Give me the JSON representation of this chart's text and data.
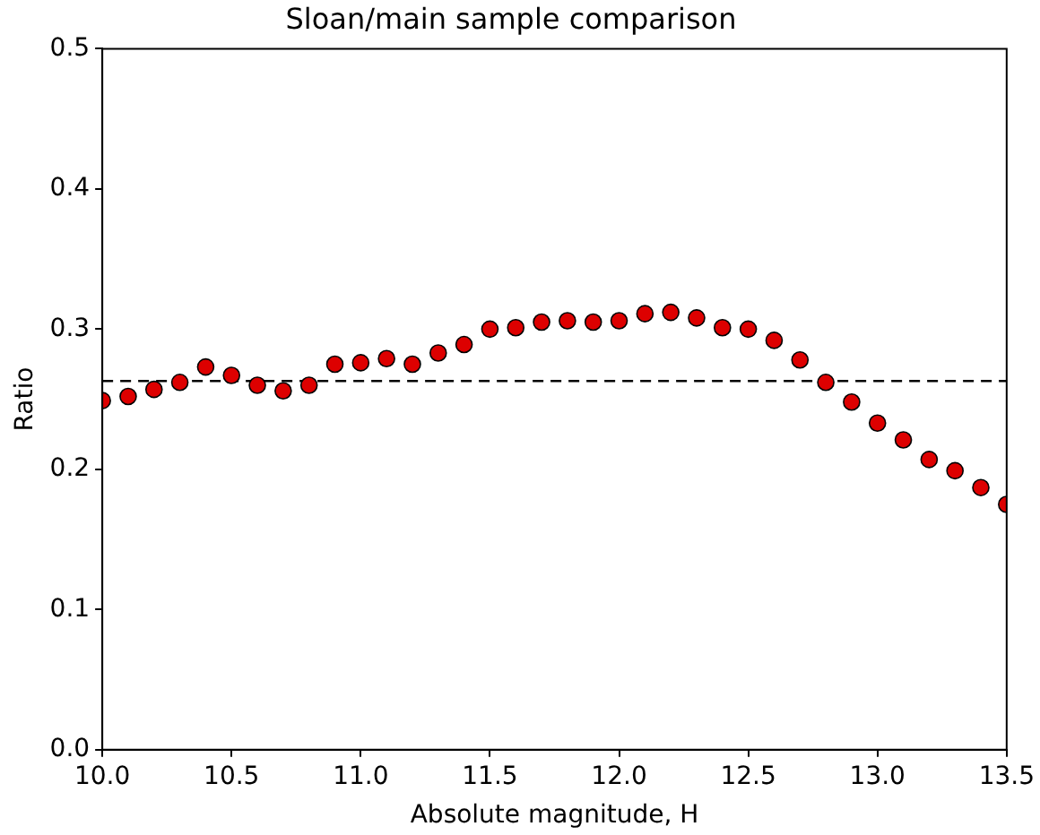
{
  "chart_data": {
    "type": "scatter",
    "title": "Sloan/main sample comparison",
    "xlabel": "Absolute magnitude, H",
    "ylabel": "Ratio",
    "x": [
      10.0,
      10.1,
      10.2,
      10.3,
      10.4,
      10.5,
      10.6,
      10.7,
      10.8,
      10.9,
      11.0,
      11.1,
      11.2,
      11.3,
      11.4,
      11.5,
      11.6,
      11.7,
      11.8,
      11.9,
      12.0,
      12.1,
      12.2,
      12.3,
      12.4,
      12.5,
      12.6,
      12.7,
      12.8,
      12.9,
      13.0,
      13.1,
      13.2,
      13.3,
      13.4,
      13.5
    ],
    "series": [
      {
        "color": "#dd0000",
        "values": [
          0.249,
          0.252,
          0.257,
          0.262,
          0.273,
          0.267,
          0.26,
          0.256,
          0.26,
          0.275,
          0.276,
          0.279,
          0.275,
          0.283,
          0.289,
          0.3,
          0.301,
          0.305,
          0.306,
          0.305,
          0.306,
          0.311,
          0.312,
          0.308,
          0.301,
          0.3,
          0.292,
          0.278,
          0.262,
          0.248,
          0.233,
          0.221,
          0.207,
          0.199,
          0.187,
          0.175
        ]
      }
    ],
    "xlim": [
      10.0,
      13.5
    ],
    "xticks": [
      {
        "value": 10.0,
        "label": "10.0"
      },
      {
        "value": 10.5,
        "label": "10.5"
      },
      {
        "value": 11.0,
        "label": "11.0"
      },
      {
        "value": 11.5,
        "label": "11.5"
      },
      {
        "value": 12.0,
        "label": "12.0"
      },
      {
        "value": 12.5,
        "label": "12.5"
      },
      {
        "value": 13.0,
        "label": "13.0"
      },
      {
        "value": 13.5,
        "label": "13.5"
      }
    ],
    "ylim": [
      0,
      0.5
    ],
    "yticks": [
      {
        "value": 0,
        "label": "0.0"
      },
      {
        "value": 0.1,
        "label": "0.1"
      },
      {
        "value": 0.2,
        "label": "0.2"
      },
      {
        "value": 0.3,
        "label": "0.3"
      },
      {
        "value": 0.4,
        "label": "0.4"
      },
      {
        "value": 0.5,
        "label": "0.5"
      }
    ],
    "ref_lines": [
      {
        "axis": "y",
        "value": 0.263,
        "color": "#000000",
        "line_style": "dashed"
      }
    ],
    "marker": "circle",
    "grid": false,
    "legend": false
  }
}
